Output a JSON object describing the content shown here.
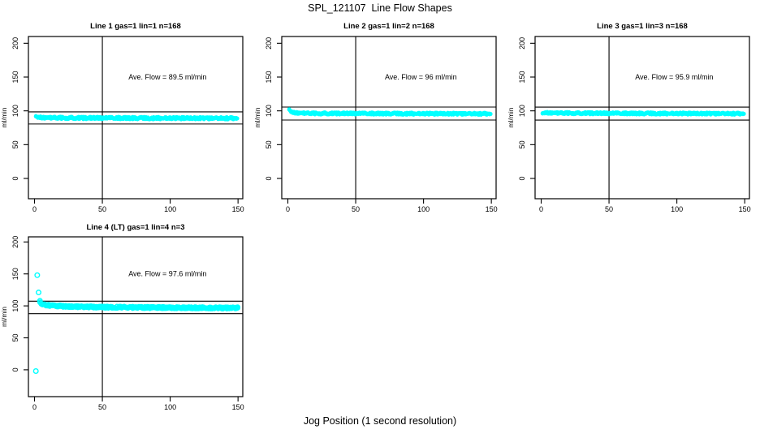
{
  "title": "SPL_121107  Line Flow Shapes",
  "xlabel": "Jog Position (1 second resolution)",
  "colors": {
    "points": "#00ffff",
    "axis": "#000000",
    "text": "#000000",
    "background": "#ffffff"
  },
  "chart_data": [
    {
      "type": "scatter",
      "title": "Line 1 gas=1 lin=1 n=168",
      "ylabel": "ml/min",
      "annotation": "Ave. Flow =  89.5  ml/min",
      "ave_flow": 89.5,
      "n_runs": 168,
      "xlim": [
        -4.5,
        153.5
      ],
      "ylim": [
        -30,
        210
      ],
      "xticks": [
        0,
        50,
        100,
        150
      ],
      "yticks": [
        0,
        50,
        100,
        150,
        200
      ],
      "ref_vline_x": 50,
      "ref_hlines_y": [
        98.45,
        80.55
      ],
      "series": [
        {
          "name": "flow-band",
          "marker": "circle",
          "style": "solid",
          "x_start": 1,
          "x_end": 150,
          "step": 0.7,
          "runs": 2,
          "halfwidth": 1.8,
          "profile": [
            [
              1,
              93
            ],
            [
              2,
              91
            ],
            [
              3,
              90.2
            ],
            [
              6,
              89.8
            ],
            [
              30,
              89.5
            ],
            [
              150,
              89
            ]
          ]
        }
      ]
    },
    {
      "type": "scatter",
      "title": "Line 2 gas=1 lin=2 n=168",
      "ylabel": "ml/min",
      "annotation": "Ave. Flow =  96  ml/min",
      "ave_flow": 96,
      "n_runs": 168,
      "xlim": [
        -4.5,
        153.5
      ],
      "ylim": [
        -30,
        210
      ],
      "xticks": [
        0,
        50,
        100,
        150
      ],
      "yticks": [
        0,
        50,
        100,
        150,
        200
      ],
      "ref_vline_x": 50,
      "ref_hlines_y": [
        105.6,
        86.4
      ],
      "series": [
        {
          "name": "flow-band",
          "marker": "circle",
          "style": "solid",
          "x_start": 1,
          "x_end": 150,
          "step": 0.7,
          "runs": 2,
          "halfwidth": 1.6,
          "profile": [
            [
              1,
              103
            ],
            [
              2,
              99.5
            ],
            [
              3,
              98
            ],
            [
              4,
              97.3
            ],
            [
              8,
              96.6
            ],
            [
              20,
              96.2
            ],
            [
              150,
              95.6
            ]
          ]
        }
      ]
    },
    {
      "type": "scatter",
      "title": "Line 3 gas=1 lin=3 n=168",
      "ylabel": "ml/min",
      "annotation": "Ave. Flow =  95.9  ml/min",
      "ave_flow": 95.9,
      "n_runs": 168,
      "xlim": [
        -4.5,
        153.5
      ],
      "ylim": [
        -30,
        210
      ],
      "xticks": [
        0,
        50,
        100,
        150
      ],
      "yticks": [
        0,
        50,
        100,
        150,
        200
      ],
      "ref_vline_x": 50,
      "ref_hlines_y": [
        105.49,
        86.31
      ],
      "series": [
        {
          "name": "flow-band",
          "marker": "circle",
          "style": "solid",
          "x_start": 1,
          "x_end": 150,
          "step": 0.7,
          "runs": 2,
          "halfwidth": 1.6,
          "profile": [
            [
              1,
              97.2
            ],
            [
              5,
              96.8
            ],
            [
              50,
              96.3
            ],
            [
              150,
              95.8
            ]
          ]
        }
      ]
    },
    {
      "type": "scatter",
      "title": "Line 4 (LT) gas=1 lin=4 n=3",
      "ylabel": "ml/min",
      "annotation": "Ave. Flow =  97.6  ml/min",
      "ave_flow": 97.6,
      "n_runs": 3,
      "xlim": [
        -4.5,
        153.5
      ],
      "ylim": [
        -42,
        208
      ],
      "xticks": [
        0,
        50,
        100,
        150
      ],
      "yticks": [
        0,
        50,
        100,
        150,
        200
      ],
      "ref_vline_x": 50,
      "ref_hlines_y": [
        107.36,
        87.84
      ],
      "series": [
        {
          "name": "startup-outliers",
          "marker": "circle",
          "style": "open",
          "points": [
            [
              1,
              -2
            ],
            [
              2,
              148
            ],
            [
              3,
              121
            ],
            [
              4,
              108
            ]
          ]
        },
        {
          "name": "flow-band",
          "marker": "circle",
          "style": "open",
          "x_start": 4,
          "x_end": 150,
          "step": 0.9,
          "runs": 3,
          "halfwidth": 1.6,
          "profile": [
            [
              4,
              105
            ],
            [
              5,
              103.5
            ],
            [
              6,
              102.5
            ],
            [
              8,
              101.5
            ],
            [
              12,
              100.5
            ],
            [
              20,
              99.5
            ],
            [
              35,
              98.5
            ],
            [
              60,
              97.8
            ],
            [
              100,
              97.2
            ],
            [
              150,
              96.8
            ]
          ]
        }
      ]
    }
  ]
}
